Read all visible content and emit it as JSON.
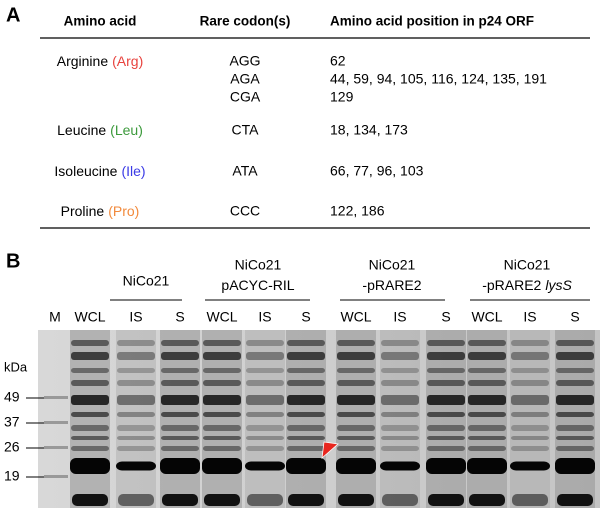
{
  "panel_a": {
    "label": "A",
    "table": {
      "headers": [
        "Amino  acid",
        "Rare codon(s)",
        "Amino  acid  position  in  p24 ORF"
      ],
      "rows": [
        {
          "amino_acid": "Arginine",
          "abbr": "(Arg)",
          "abbr_color": "#e8433e",
          "codons": [
            "AGG",
            "AGA",
            "CGA"
          ],
          "positions": [
            "62",
            "44, 59, 94, 105, 116, 124, 135, 191",
            "129"
          ]
        },
        {
          "amino_acid": "Leucine",
          "abbr": "(Leu)",
          "abbr_color": "#3c9a3c",
          "codons": [
            "CTA"
          ],
          "positions": [
            "18, 134, 173"
          ]
        },
        {
          "amino_acid": "Isoleucine",
          "abbr": "(Ile)",
          "abbr_color": "#3a3ae6",
          "codons": [
            "ATA"
          ],
          "positions": [
            "66, 77, 96, 103"
          ]
        },
        {
          "amino_acid": "Proline",
          "abbr": "(Pro)",
          "abbr_color": "#f28a3c",
          "codons": [
            "CCC"
          ],
          "positions": [
            "122, 186"
          ]
        }
      ]
    }
  },
  "panel_b": {
    "label": "B",
    "groups": [
      {
        "line1": "NiCo21"
      },
      {
        "line1": "NiCo21",
        "line2": "pACYC-RIL"
      },
      {
        "line1": "NiCo21",
        "line2": "-pRARE2"
      },
      {
        "line1": "NiCo21",
        "line2": "-pRARE2",
        "line2_italic": "lysS"
      }
    ],
    "lanes": [
      "M",
      "WCL",
      "IS",
      "S",
      "WCL",
      "IS",
      "S",
      "WCL",
      "IS",
      "S",
      "WCL",
      "IS",
      "S"
    ],
    "unit": "kDa",
    "markers": [
      "49",
      "37",
      "26",
      "19"
    ]
  }
}
